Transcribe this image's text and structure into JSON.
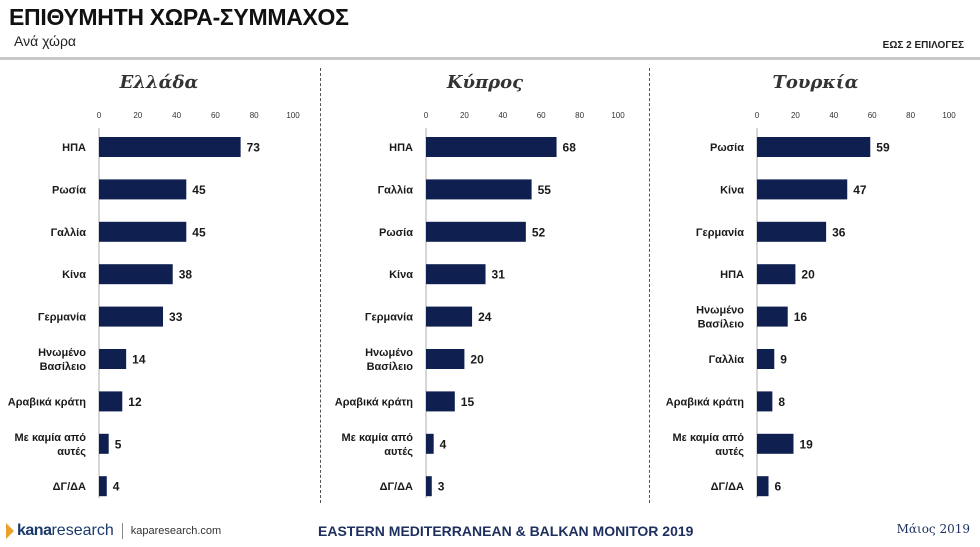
{
  "header": {
    "title": "ΕΠΙΘΥΜΗΤΗ ΧΩΡΑ-ΣΥΜΜΑΧΟΣ",
    "subtitle": "Ανά χώρα",
    "note": "ΕΩΣ 2 ΕΠΙΛΟΓΕΣ"
  },
  "footer": {
    "logo_kana": "kana",
    "logo_research": "research",
    "site": "kaparesearch.com",
    "center": "EASTERN MEDITERRANEAN & BALKAN MONITOR 2019",
    "date": "Μάιος 2019"
  },
  "colors": {
    "bar": "#0f1f4f",
    "text": "#1a1a1a"
  },
  "chart_data": [
    {
      "type": "bar",
      "orientation": "horizontal",
      "title": "Ελλάδα",
      "xlim": [
        0,
        100
      ],
      "ticks": [
        0,
        20,
        40,
        60,
        80,
        100
      ],
      "categories": [
        "ΗΠΑ",
        "Ρωσία",
        "Γαλλία",
        "Κίνα",
        "Γερμανία",
        "Ηνωμένο Βασίλειο",
        "Αραβικά κράτη",
        "Με καμία από αυτές",
        "ΔΓ/ΔΑ"
      ],
      "values": [
        73,
        45,
        45,
        38,
        33,
        14,
        12,
        5,
        4
      ]
    },
    {
      "type": "bar",
      "orientation": "horizontal",
      "title": "Κύπρος",
      "xlim": [
        0,
        100
      ],
      "ticks": [
        0,
        20,
        40,
        60,
        80,
        100
      ],
      "categories": [
        "ΗΠΑ",
        "Γαλλία",
        "Ρωσία",
        "Κίνα",
        "Γερμανία",
        "Ηνωμένο Βασίλειο",
        "Αραβικά κράτη",
        "Με καμία από αυτές",
        "ΔΓ/ΔΑ"
      ],
      "values": [
        68,
        55,
        52,
        31,
        24,
        20,
        15,
        4,
        3
      ]
    },
    {
      "type": "bar",
      "orientation": "horizontal",
      "title": "Τουρκία",
      "xlim": [
        0,
        100
      ],
      "ticks": [
        0,
        20,
        40,
        60,
        80,
        100
      ],
      "categories": [
        "Ρωσία",
        "Κίνα",
        "Γερμανία",
        "ΗΠΑ",
        "Ηνωμένο Βασίλειο",
        "Γαλλία",
        "Αραβικά κράτη",
        "Με καμία από αυτές",
        "ΔΓ/ΔΑ"
      ],
      "values": [
        59,
        47,
        36,
        20,
        16,
        9,
        8,
        19,
        6
      ]
    }
  ]
}
